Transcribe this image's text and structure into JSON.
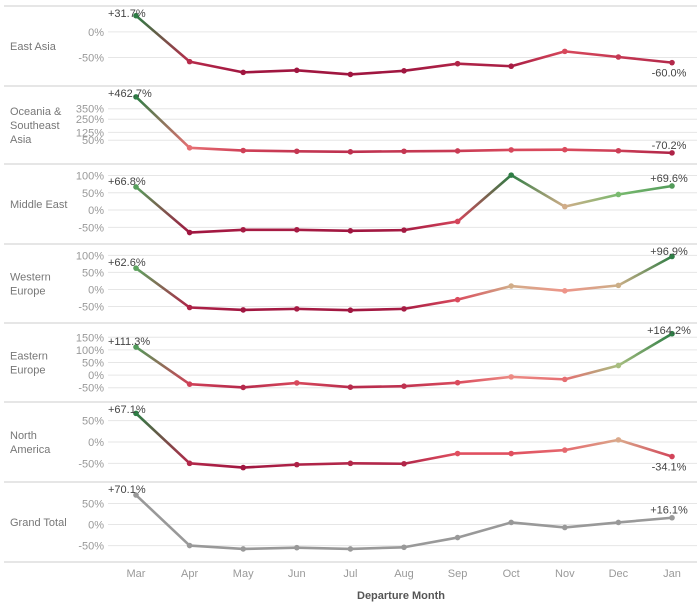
{
  "chart_data": {
    "type": "line",
    "xlabel": "Departure Month",
    "categories": [
      "Mar",
      "Apr",
      "May",
      "Jun",
      "Jul",
      "Aug",
      "Sep",
      "Oct",
      "Nov",
      "Dec",
      "Jan"
    ],
    "colors": {
      "dark_green": "#2e7d45",
      "light_green": "#8cc97a",
      "pink": "#f0a090",
      "red": "#e05060",
      "dark_red": "#a01640",
      "gray": "#999999",
      "grid": "#e6e6e6",
      "axis_text": "#999999",
      "label_text": "#444444"
    },
    "panels": [
      {
        "name": "East Asia",
        "ylim": [
          -90,
          35
        ],
        "ticks": [
          {
            "v": 0,
            "label": "0%"
          },
          {
            "v": -50,
            "label": "-50%"
          }
        ],
        "values": [
          31.7,
          -58,
          -79,
          -75,
          -83,
          -76,
          -62,
          -67,
          -38,
          -49,
          -60
        ],
        "first_label": "+31.7%",
        "last_label": "-60.0%",
        "label_pos": [
          "top",
          "bottom"
        ]
      },
      {
        "name": "Oceania & Southeast Asia",
        "ylim": [
          -100,
          490
        ],
        "ticks": [
          {
            "v": 350,
            "label": "350%"
          },
          {
            "v": 250,
            "label": "250%"
          },
          {
            "v": 125,
            "label": "125%"
          },
          {
            "v": 50,
            "label": "50%"
          }
        ],
        "values": [
          462.7,
          -22,
          -48,
          -55,
          -60,
          -55,
          -52,
          -42,
          -40,
          -50,
          -70.2
        ],
        "first_label": "+462.7%",
        "last_label": "-70.2%",
        "label_pos": [
          "top",
          "top"
        ]
      },
      {
        "name": "Middle East",
        "ylim": [
          -75,
          110
        ],
        "ticks": [
          {
            "v": 100,
            "label": "100%"
          },
          {
            "v": 50,
            "label": "50%"
          },
          {
            "v": 0,
            "label": "0%"
          },
          {
            "v": -50,
            "label": "-50%"
          }
        ],
        "values": [
          66.8,
          -65,
          -57,
          -57,
          -60,
          -58,
          -33,
          101,
          10,
          45,
          69.6
        ],
        "first_label": "+66.8%",
        "last_label": "+69.6%",
        "label_pos": [
          "top",
          "top"
        ]
      },
      {
        "name": "Western Europe",
        "ylim": [
          -75,
          110
        ],
        "ticks": [
          {
            "v": 100,
            "label": "100%"
          },
          {
            "v": 50,
            "label": "50%"
          },
          {
            "v": 0,
            "label": "0%"
          },
          {
            "v": -50,
            "label": "-50%"
          }
        ],
        "values": [
          62.6,
          -53,
          -60,
          -57,
          -61,
          -57,
          -30,
          10,
          -4,
          12,
          96.9
        ],
        "first_label": "+62.6%",
        "last_label": "+96.9%",
        "label_pos": [
          "top",
          "top"
        ]
      },
      {
        "name": "Eastern Europe",
        "ylim": [
          -75,
          175
        ],
        "ticks": [
          {
            "v": 150,
            "label": "150%"
          },
          {
            "v": 100,
            "label": "100%"
          },
          {
            "v": 50,
            "label": "50%"
          },
          {
            "v": 0,
            "label": "0%"
          },
          {
            "v": -50,
            "label": "-50%"
          }
        ],
        "values": [
          111.3,
          -36,
          -49,
          -31,
          -48,
          -44,
          -30,
          -7,
          -17,
          38,
          164.2
        ],
        "first_label": "+111.3%",
        "last_label": "+164.2%",
        "label_pos": [
          "top",
          "top"
        ]
      },
      {
        "name": "North America",
        "ylim": [
          -75,
          75
        ],
        "ticks": [
          {
            "v": 50,
            "label": "50%"
          },
          {
            "v": 0,
            "label": "0%"
          },
          {
            "v": -50,
            "label": "-50%"
          }
        ],
        "values": [
          67.1,
          -50,
          -60,
          -53,
          -50,
          -51,
          -27,
          -27,
          -19,
          5,
          -34.1
        ],
        "first_label": "+67.1%",
        "last_label": "-34.1%",
        "label_pos": [
          "top",
          "bottom"
        ]
      },
      {
        "name": "Grand Total",
        "ylim": [
          -70,
          82
        ],
        "ticks": [
          {
            "v": 50,
            "label": "50%"
          },
          {
            "v": 0,
            "label": "0%"
          },
          {
            "v": -50,
            "label": "-50%"
          }
        ],
        "values": [
          70.1,
          -50,
          -58,
          -55,
          -58,
          -54,
          -31,
          5,
          -7,
          5,
          16.1
        ],
        "first_label": "+70.1%",
        "last_label": "+16.1%",
        "label_pos": [
          "top",
          "top"
        ],
        "gray": true
      }
    ]
  }
}
